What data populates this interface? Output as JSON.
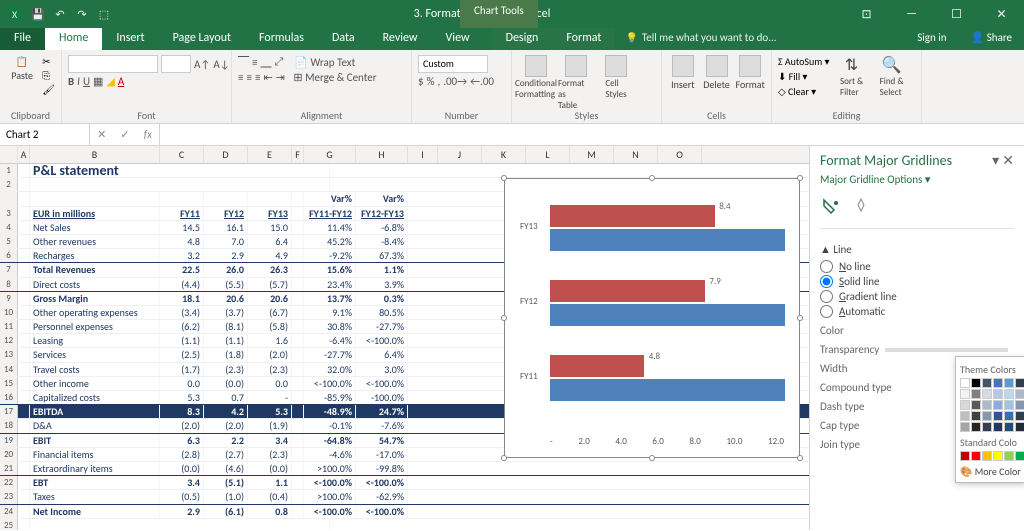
{
  "app": {
    "title": "3. Formatting a Chart - Excel",
    "chart_tools": "Chart Tools",
    "signin": "Sign in",
    "share": "Share",
    "tellme": "Tell me what you want to do..."
  },
  "tabs": [
    "File",
    "Home",
    "Insert",
    "Page Layout",
    "Formulas",
    "Data",
    "Review",
    "View",
    "Design",
    "Format"
  ],
  "ribbon_groups": [
    "Clipboard",
    "Font",
    "Alignment",
    "Number",
    "Styles",
    "Cells",
    "Editing"
  ],
  "ribbon": {
    "paste": "Paste",
    "wrap": "Wrap Text",
    "merge": "Merge & Center",
    "numfmt": "Custom",
    "condfmt": "Conditional\nFormatting",
    "fmttbl": "Format as\nTable",
    "cellsty": "Cell\nStyles",
    "insert": "Insert",
    "delete": "Delete",
    "format": "Format",
    "autosum": "AutoSum",
    "fill": "Fill",
    "clear": "Clear",
    "sortfilter": "Sort &\nFilter",
    "findsel": "Find &\nSelect"
  },
  "namebox": "Chart 2",
  "cols": [
    "A",
    "B",
    "C",
    "D",
    "E",
    "F",
    "G",
    "H",
    "I",
    "J",
    "K",
    "L",
    "M",
    "N",
    "O"
  ],
  "title": "P&L statement",
  "headers": {
    "label": "EUR in millions",
    "c": "FY11",
    "d": "FY12",
    "e": "FY13",
    "g": "Var%\nFY11-FY12",
    "h": "Var%\nFY12-FY13"
  },
  "rows": [
    {
      "n": 4,
      "b": "Net Sales",
      "c": "14.5",
      "d": "16.1",
      "e": "15.0",
      "g": "11.4%",
      "h": "-6.8%"
    },
    {
      "n": 5,
      "b": "Other revenues",
      "c": "4.8",
      "d": "7.0",
      "e": "6.4",
      "g": "45.2%",
      "h": "-8.4%"
    },
    {
      "n": 6,
      "b": "Recharges",
      "c": "3.2",
      "d": "2.9",
      "e": "4.9",
      "g": "-9.2%",
      "h": "67.3%",
      "uline": true
    },
    {
      "n": 7,
      "b": "Total Revenues",
      "c": "22.5",
      "d": "26.0",
      "e": "26.3",
      "g": "15.6%",
      "h": "1.1%",
      "bold": true
    },
    {
      "n": 8,
      "b": "Direct costs",
      "c": "(4.4)",
      "d": "(5.5)",
      "e": "(5.7)",
      "g": "23.4%",
      "h": "3.9%",
      "uline": true
    },
    {
      "n": 9,
      "b": "Gross Margin",
      "c": "18.1",
      "d": "20.6",
      "e": "20.6",
      "g": "13.7%",
      "h": "0.3%",
      "bold": true
    },
    {
      "n": 10,
      "b": "Other operating expenses",
      "c": "(3.4)",
      "d": "(3.7)",
      "e": "(6.7)",
      "g": "9.1%",
      "h": "80.5%"
    },
    {
      "n": 11,
      "b": "Personnel expenses",
      "c": "(6.2)",
      "d": "(8.1)",
      "e": "(5.8)",
      "g": "30.8%",
      "h": "-27.7%"
    },
    {
      "n": 12,
      "b": "Leasing",
      "c": "(1.1)",
      "d": "(1.1)",
      "e": "1.6",
      "g": "-6.4%",
      "h": "<-100.0%"
    },
    {
      "n": 13,
      "b": "Services",
      "c": "(2.5)",
      "d": "(1.8)",
      "e": "(2.0)",
      "g": "-27.7%",
      "h": "6.4%"
    },
    {
      "n": 14,
      "b": "Travel costs",
      "c": "(1.7)",
      "d": "(2.3)",
      "e": "(2.3)",
      "g": "32.0%",
      "h": "3.0%"
    },
    {
      "n": 15,
      "b": "Other income",
      "c": "0.0",
      "d": "(0.0)",
      "e": "0.0",
      "g": "<-100.0%",
      "h": "<-100.0%"
    },
    {
      "n": 16,
      "b": "Capitalized costs",
      "c": "5.3",
      "d": "0.7",
      "e": "-",
      "g": "-85.9%",
      "h": "-100.0%",
      "uline": true
    },
    {
      "n": 17,
      "b": "EBITDA",
      "c": "8.3",
      "d": "4.2",
      "e": "5.3",
      "g": "-48.9%",
      "h": "24.7%",
      "hl": true
    },
    {
      "n": 18,
      "b": "D&A",
      "c": "(2.0)",
      "d": "(2.0)",
      "e": "(1.9)",
      "g": "-0.1%",
      "h": "-7.6%",
      "uline": true
    },
    {
      "n": 19,
      "b": "EBIT",
      "c": "6.3",
      "d": "2.2",
      "e": "3.4",
      "g": "-64.8%",
      "h": "54.7%",
      "bold": true
    },
    {
      "n": 20,
      "b": "Financial items",
      "c": "(2.8)",
      "d": "(2.7)",
      "e": "(2.3)",
      "g": "-4.6%",
      "h": "-17.0%"
    },
    {
      "n": 21,
      "b": "Extraordinary items",
      "c": "(0.0)",
      "d": "(4.6)",
      "e": "(0.0)",
      "g": ">100.0%",
      "h": "-99.8%",
      "uline": true
    },
    {
      "n": 22,
      "b": "EBT",
      "c": "3.4",
      "d": "(5.1)",
      "e": "1.1",
      "g": "<-100.0%",
      "h": "<-100.0%",
      "bold": true
    },
    {
      "n": 23,
      "b": "Taxes",
      "c": "(0.5)",
      "d": "(1.0)",
      "e": "(0.4)",
      "g": ">100.0%",
      "h": "-62.9%",
      "uline": true
    },
    {
      "n": 24,
      "b": "Net Income",
      "c": "2.9",
      "d": "(6.1)",
      "e": "0.8",
      "g": "<-100.0%",
      "h": "<-100.0%",
      "bold": true
    }
  ],
  "chart": {
    "type": "bar",
    "categories": [
      "FY13",
      "FY12",
      "FY11"
    ],
    "series": [
      {
        "name": "red",
        "color": "#c0504d",
        "values": [
          8.4,
          7.9,
          4.8
        ],
        "labels": [
          "8.4",
          "7.9",
          "4.8"
        ]
      },
      {
        "name": "blue",
        "color": "#4f81bd",
        "values": [
          12.0,
          12.0,
          12.0
        ]
      }
    ],
    "xlim": [
      0,
      12
    ],
    "xticks": [
      "-",
      "2.0",
      "4.0",
      "6.0",
      "8.0",
      "10.0",
      "12.0"
    ],
    "bg": "#ffffff"
  },
  "pane": {
    "title": "Format Major Gridlines",
    "sub": "Major Gridline Options",
    "section": "Line",
    "opts": [
      "No line",
      "Solid line",
      "Gradient line",
      "Automatic"
    ],
    "selected": 1,
    "props": [
      "Color",
      "Transparency",
      "Width",
      "Compound type",
      "Dash type",
      "Cap type",
      "Join type"
    ]
  },
  "colorpop": {
    "theme_lbl": "Theme Colors",
    "std_lbl": "Standard Colo",
    "more": "More Color",
    "theme": [
      "#ffffff",
      "#000000",
      "#44546a",
      "#4472c4",
      "#5b9bd5",
      "#333f50",
      "#f2f2f2",
      "#7f7f7f",
      "#d6dce5",
      "#b4c7e7",
      "#bdd7ee",
      "#adb9ca",
      "#d9d9d9",
      "#595959",
      "#aeb9ca",
      "#8faadc",
      "#9dc3e6",
      "#8497b0",
      "#bfbfbf",
      "#404040",
      "#8497b0",
      "#2e5597",
      "#2e74b5",
      "#323f4f",
      "#a6a6a6",
      "#262626",
      "#333f50",
      "#1f3864",
      "#1f4e79",
      "#222a35"
    ],
    "standard": [
      "#c00000",
      "#ff0000",
      "#ffc000",
      "#ffff00",
      "#92d050",
      "#00b050"
    ]
  }
}
